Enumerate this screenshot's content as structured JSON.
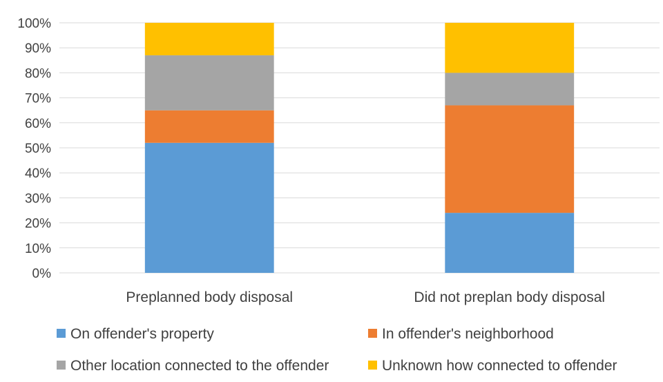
{
  "chart_data": {
    "type": "bar",
    "stacked": true,
    "categories": [
      "Preplanned body disposal",
      "Did not preplan body disposal"
    ],
    "series": [
      {
        "name": "On offender's property",
        "color": "#5B9BD5",
        "values": [
          52,
          24
        ]
      },
      {
        "name": "In offender's neighborhood",
        "color": "#ED7D31",
        "values": [
          13,
          43
        ]
      },
      {
        "name": "Other location connected to the offender",
        "color": "#A5A5A5",
        "values": [
          22,
          13
        ]
      },
      {
        "name": "Unknown how connected to offender",
        "color": "#FFC000",
        "values": [
          13,
          20
        ]
      }
    ],
    "ylim": [
      0,
      100
    ],
    "yticks": [
      "0%",
      "10%",
      "20%",
      "30%",
      "40%",
      "50%",
      "60%",
      "70%",
      "80%",
      "90%",
      "100%"
    ],
    "grid": true,
    "legend_position": "bottom"
  }
}
